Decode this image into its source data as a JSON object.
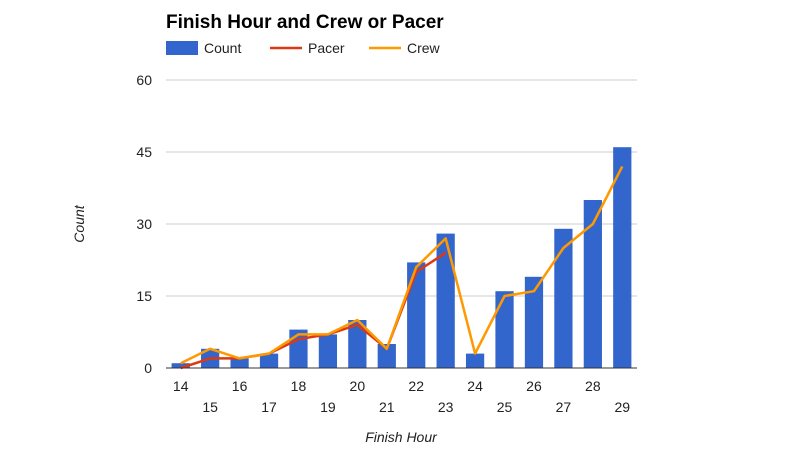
{
  "chart_data": {
    "type": "bar",
    "title": "Finish Hour and Crew or Pacer",
    "xlabel": "Finish Hour",
    "ylabel": "Count",
    "ylim": [
      0,
      60
    ],
    "yticks": [
      "0",
      "15",
      "30",
      "45",
      "60"
    ],
    "categories": [
      "14",
      "15",
      "16",
      "17",
      "18",
      "19",
      "20",
      "21",
      "22",
      "23",
      "24",
      "25",
      "26",
      "27",
      "28",
      "29"
    ],
    "series": [
      {
        "name": "Count",
        "type": "bar",
        "color": "#3366cc",
        "values": [
          1,
          4,
          2,
          3,
          8,
          7,
          10,
          5,
          22,
          28,
          3,
          16,
          19,
          29,
          35,
          46
        ]
      },
      {
        "name": "Pacer",
        "type": "line",
        "color": "#dc3912",
        "values": [
          0,
          2,
          2,
          3,
          6,
          7,
          9,
          4,
          20,
          24,
          null,
          null,
          null,
          null,
          null,
          null
        ]
      },
      {
        "name": "Crew",
        "type": "line",
        "color": "#ff9900",
        "values": [
          1,
          4,
          2,
          3,
          7,
          7,
          10,
          4,
          21,
          27,
          3,
          15,
          16,
          25,
          30,
          42
        ]
      }
    ],
    "grid": true,
    "legend": "top-left"
  }
}
